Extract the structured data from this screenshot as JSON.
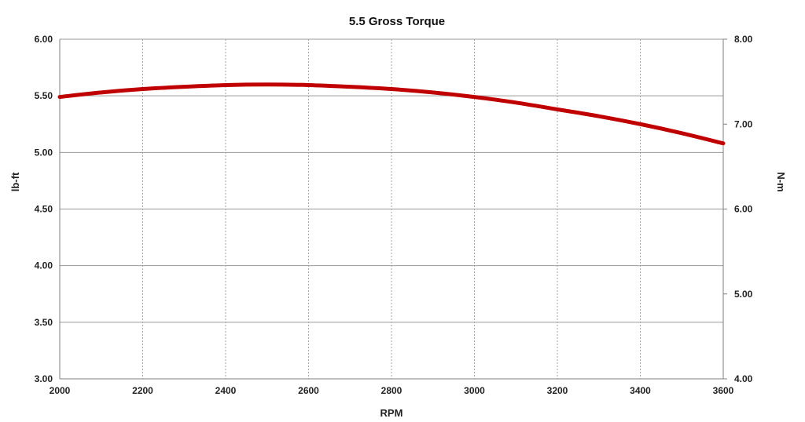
{
  "chart_data": {
    "type": "line",
    "title": "5.5 Gross Torque",
    "xlabel": "RPM",
    "ylabel": "lb-ft",
    "y2label": "N-m",
    "xlim": [
      2000,
      3600
    ],
    "ylim": [
      3.0,
      6.0
    ],
    "y2lim": [
      4.0,
      8.0
    ],
    "x_ticks": [
      "2000",
      "2200",
      "2400",
      "2600",
      "2800",
      "3000",
      "3200",
      "3400",
      "3600"
    ],
    "y_ticks": [
      "3.00",
      "3.50",
      "4.00",
      "4.50",
      "5.00",
      "5.50",
      "6.00"
    ],
    "y2_ticks": [
      "4.00",
      "5.00",
      "6.00",
      "7.00",
      "8.00"
    ],
    "grid": {
      "vertical": "dashed",
      "horizontal": "solid"
    },
    "legend": "none",
    "series": [
      {
        "color": "#c00000",
        "x": [
          2000,
          2100,
          2200,
          2300,
          2400,
          2500,
          2600,
          2700,
          2800,
          2900,
          3000,
          3100,
          3200,
          3300,
          3400,
          3500,
          3600
        ],
        "values": [
          5.49,
          5.53,
          5.56,
          5.58,
          5.595,
          5.6,
          5.595,
          5.58,
          5.56,
          5.53,
          5.49,
          5.44,
          5.38,
          5.32,
          5.25,
          5.17,
          5.08
        ]
      }
    ]
  }
}
